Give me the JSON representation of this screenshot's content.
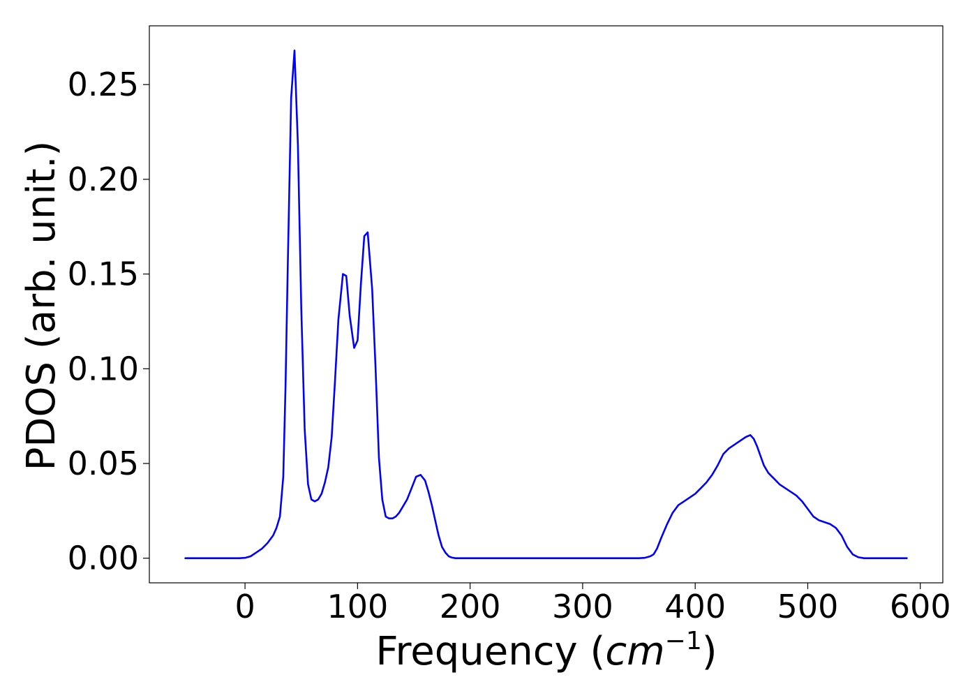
{
  "chart_data": {
    "type": "line",
    "xlabel": "Frequency",
    "xlabel_unit_base": "cm",
    "xlabel_unit_exp": "−1",
    "ylabel": "PDOS (arb. unit.)",
    "xlim": [
      -85,
      620
    ],
    "ylim": [
      -0.013,
      0.281
    ],
    "xticks": [
      0,
      100,
      200,
      300,
      400,
      500,
      600
    ],
    "xtick_labels": [
      "0",
      "100",
      "200",
      "300",
      "400",
      "500",
      "600"
    ],
    "yticks": [
      0.0,
      0.05,
      0.1,
      0.15,
      0.2,
      0.25
    ],
    "ytick_labels": [
      "0.00",
      "0.05",
      "0.10",
      "0.15",
      "0.20",
      "0.25"
    ],
    "grid": false,
    "series": [
      {
        "color": "#0000ff",
        "x": [
          -53,
          -20,
          -5,
          0,
          5,
          10,
          15,
          20,
          25,
          28,
          31,
          34,
          36,
          38,
          41,
          44,
          47,
          50,
          53,
          56,
          59,
          62,
          65,
          68,
          71,
          74,
          77,
          80,
          83,
          87,
          90,
          93,
          97,
          100,
          103,
          106,
          109,
          113,
          116,
          119,
          122,
          125,
          128,
          131,
          134,
          137,
          140,
          144,
          148,
          152,
          156,
          160,
          163,
          166,
          169,
          172,
          175,
          178,
          181,
          184,
          187,
          190,
          195,
          200,
          250,
          300,
          350,
          355,
          360,
          363,
          366,
          370,
          375,
          380,
          385,
          390,
          395,
          400,
          405,
          410,
          415,
          420,
          425,
          430,
          435,
          440,
          445,
          449,
          452,
          455,
          458,
          461,
          465,
          470,
          475,
          480,
          485,
          490,
          495,
          500,
          505,
          510,
          515,
          520,
          525,
          530,
          535,
          540,
          545,
          550,
          560,
          588
        ],
        "y": [
          0,
          0,
          0,
          0.0002,
          0.001,
          0.003,
          0.005,
          0.008,
          0.012,
          0.016,
          0.022,
          0.043,
          0.09,
          0.155,
          0.243,
          0.268,
          0.218,
          0.132,
          0.068,
          0.039,
          0.031,
          0.03,
          0.031,
          0.034,
          0.04,
          0.048,
          0.064,
          0.094,
          0.126,
          0.15,
          0.149,
          0.128,
          0.111,
          0.115,
          0.145,
          0.17,
          0.172,
          0.142,
          0.1,
          0.053,
          0.031,
          0.022,
          0.021,
          0.021,
          0.022,
          0.024,
          0.027,
          0.031,
          0.037,
          0.043,
          0.044,
          0.041,
          0.035,
          0.028,
          0.02,
          0.012,
          0.006,
          0.003,
          0.001,
          0.0003,
          0,
          0,
          0,
          0,
          0,
          0,
          0,
          0.0002,
          0.001,
          0.002,
          0.005,
          0.011,
          0.018,
          0.024,
          0.028,
          0.03,
          0.032,
          0.034,
          0.037,
          0.04,
          0.044,
          0.049,
          0.055,
          0.058,
          0.06,
          0.062,
          0.064,
          0.065,
          0.063,
          0.059,
          0.054,
          0.049,
          0.045,
          0.042,
          0.039,
          0.037,
          0.035,
          0.033,
          0.03,
          0.026,
          0.022,
          0.02,
          0.019,
          0.018,
          0.016,
          0.012,
          0.006,
          0.002,
          0.0005,
          0,
          0,
          0
        ]
      }
    ]
  }
}
